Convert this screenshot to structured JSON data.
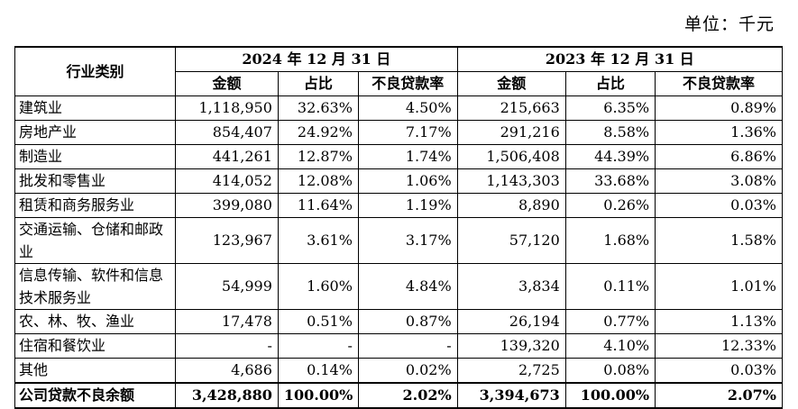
{
  "unit_label": "单位：千元",
  "header": {
    "category": "行业类别",
    "year1": "2024 年 12 月 31 日",
    "year2": "2023 年 12 月 31 日",
    "cols": [
      "金额",
      "占比",
      "不良贷款率",
      "金额",
      "占比",
      "不良贷款率"
    ]
  },
  "rows": [
    {
      "cat": "建筑业",
      "v": [
        "1,118,950",
        "32.63%",
        "4.50%",
        "215,663",
        "6.35%",
        "0.89%"
      ]
    },
    {
      "cat": "房地产业",
      "v": [
        "854,407",
        "24.92%",
        "7.17%",
        "291,216",
        "8.58%",
        "1.36%"
      ]
    },
    {
      "cat": "制造业",
      "v": [
        "441,261",
        "12.87%",
        "1.74%",
        "1,506,408",
        "44.39%",
        "6.86%"
      ]
    },
    {
      "cat": "批发和零售业",
      "v": [
        "414,052",
        "12.08%",
        "1.06%",
        "1,143,303",
        "33.68%",
        "3.08%"
      ]
    },
    {
      "cat": "租赁和商务服务业",
      "v": [
        "399,080",
        "11.64%",
        "1.19%",
        "8,890",
        "0.26%",
        "0.03%"
      ]
    },
    {
      "cat": "交通运输、仓储和邮政业",
      "v": [
        "123,967",
        "3.61%",
        "3.17%",
        "57,120",
        "1.68%",
        "1.58%"
      ]
    },
    {
      "cat": "信息传输、软件和信息技术服务业",
      "v": [
        "54,999",
        "1.60%",
        "4.84%",
        "3,834",
        "0.11%",
        "1.01%"
      ]
    },
    {
      "cat": "农、林、牧、渔业",
      "v": [
        "17,478",
        "0.51%",
        "0.87%",
        "26,194",
        "0.77%",
        "1.13%"
      ]
    },
    {
      "cat": "住宿和餐饮业",
      "v": [
        "-",
        "-",
        "-",
        "139,320",
        "4.10%",
        "12.33%"
      ]
    },
    {
      "cat": "其他",
      "v": [
        "4,686",
        "0.14%",
        "0.02%",
        "2,725",
        "0.08%",
        "0.03%"
      ]
    }
  ],
  "total": {
    "cat": "公司贷款不良余额",
    "v": [
      "3,428,880",
      "100.00%",
      "2.02%",
      "3,394,673",
      "100.00%",
      "2.07%"
    ]
  }
}
